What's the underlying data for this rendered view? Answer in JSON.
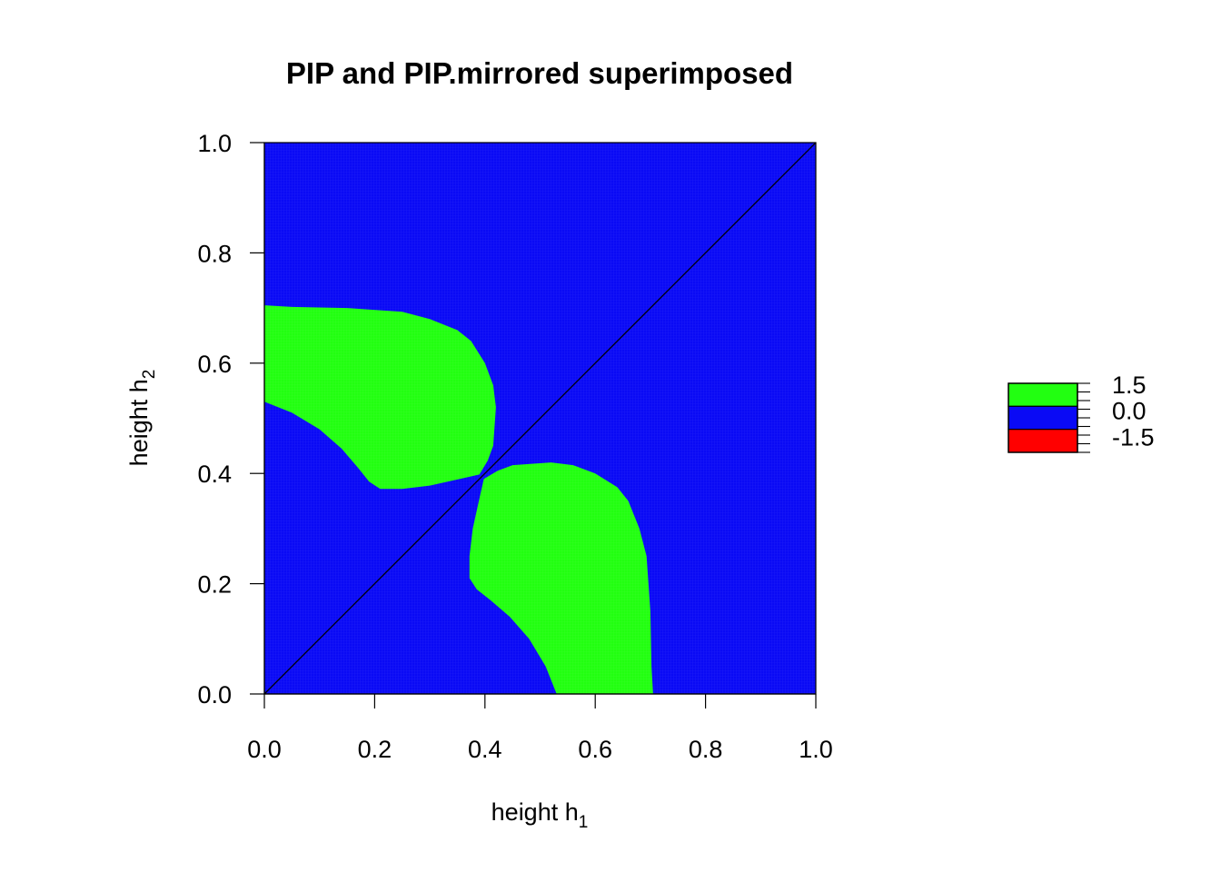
{
  "chart_data": {
    "type": "heatmap",
    "title": "PIP and PIP.mirrored superimposed",
    "xlabel": "height h",
    "xlabel_subscript": "1",
    "ylabel": "height h",
    "ylabel_subscript": "2",
    "xlim": [
      0.0,
      1.0
    ],
    "ylim": [
      0.0,
      1.0
    ],
    "x_ticks": [
      "0.0",
      "0.2",
      "0.4",
      "0.6",
      "0.8",
      "1.0"
    ],
    "y_ticks": [
      "0.0",
      "0.2",
      "0.4",
      "0.6",
      "0.8",
      "1.0"
    ],
    "background_value": 0.0,
    "regions": [
      {
        "value": 1.5,
        "boundary": [
          [
            0.0,
            0.53
          ],
          [
            0.05,
            0.51
          ],
          [
            0.1,
            0.48
          ],
          [
            0.14,
            0.445
          ],
          [
            0.17,
            0.41
          ],
          [
            0.19,
            0.385
          ],
          [
            0.21,
            0.372
          ],
          [
            0.25,
            0.372
          ],
          [
            0.3,
            0.378
          ],
          [
            0.35,
            0.389
          ],
          [
            0.39,
            0.398
          ],
          [
            0.405,
            0.423
          ],
          [
            0.415,
            0.45
          ],
          [
            0.42,
            0.52
          ],
          [
            0.415,
            0.56
          ],
          [
            0.4,
            0.6
          ],
          [
            0.375,
            0.64
          ],
          [
            0.35,
            0.66
          ],
          [
            0.3,
            0.68
          ],
          [
            0.25,
            0.693
          ],
          [
            0.15,
            0.7
          ],
          [
            0.05,
            0.702
          ],
          [
            0.0,
            0.705
          ]
        ]
      },
      {
        "value": 1.5,
        "boundary": [
          [
            0.53,
            0.0
          ],
          [
            0.51,
            0.05
          ],
          [
            0.48,
            0.1
          ],
          [
            0.445,
            0.14
          ],
          [
            0.41,
            0.17
          ],
          [
            0.385,
            0.19
          ],
          [
            0.372,
            0.21
          ],
          [
            0.372,
            0.25
          ],
          [
            0.378,
            0.3
          ],
          [
            0.389,
            0.35
          ],
          [
            0.398,
            0.39
          ],
          [
            0.423,
            0.405
          ],
          [
            0.45,
            0.415
          ],
          [
            0.52,
            0.42
          ],
          [
            0.56,
            0.415
          ],
          [
            0.6,
            0.4
          ],
          [
            0.64,
            0.375
          ],
          [
            0.66,
            0.35
          ],
          [
            0.68,
            0.3
          ],
          [
            0.693,
            0.25
          ],
          [
            0.7,
            0.15
          ],
          [
            0.702,
            0.05
          ],
          [
            0.705,
            0.0
          ]
        ]
      }
    ],
    "diagonal_line": [
      [
        0.0,
        0.0
      ],
      [
        1.0,
        1.0
      ]
    ],
    "legend": {
      "placement": "right",
      "entries": [
        {
          "label": "1.5",
          "value": 1.5,
          "color": "#22ff11"
        },
        {
          "label": "0.0",
          "value": 0.0,
          "color": "#0a0af5"
        },
        {
          "label": "-1.5",
          "value": -1.5,
          "color": "#ff0000"
        }
      ]
    },
    "colors": {
      "background": "#0a0af5",
      "positive": "#22ff11",
      "negative": "#ff0000",
      "line": "#000000"
    }
  }
}
